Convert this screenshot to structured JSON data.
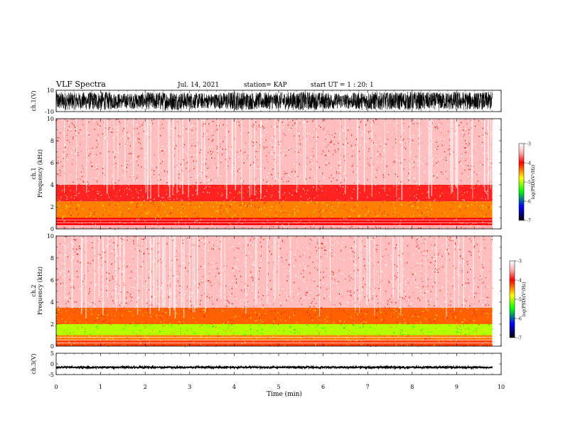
{
  "header": {
    "title": "VLF Spectra",
    "date": "Jul. 14, 2021",
    "station": "station= KAP",
    "start_ut": "start UT = 1 : 20: 1"
  },
  "colorbar": {
    "label": "log(PSD)(V²/Hz)",
    "ticks": [
      "-3",
      "-4",
      "-5",
      "-6",
      "-7"
    ],
    "colors": [
      "#ffffff",
      "#ff0000",
      "#ffff00",
      "#00ff00",
      "#0000ff",
      "#000000"
    ]
  },
  "chart_data": [
    {
      "type": "line",
      "name": "ch1-waveform",
      "ylabel": "ch.1(V)",
      "ylim": [
        -10,
        10
      ],
      "yticks": [
        "10",
        "-10"
      ],
      "x": [
        0,
        0.5,
        1,
        1.5,
        2,
        2.5,
        3,
        3.5,
        4,
        4.5,
        5,
        5.5,
        6,
        6.5,
        7,
        7.5,
        8,
        8.5,
        9,
        9.5,
        9.8
      ],
      "envelope_upper": [
        9,
        8,
        9,
        7,
        8,
        9,
        8,
        7,
        9,
        8,
        8,
        9,
        8,
        7,
        9,
        8,
        9,
        8,
        9,
        8,
        9
      ],
      "envelope_lower": [
        -9,
        -8,
        -9,
        -7,
        -8,
        -9,
        -8,
        -7,
        -9,
        -8,
        -8,
        -9,
        -8,
        -7,
        -9,
        -8,
        -9,
        -8,
        -9,
        -8,
        -9
      ]
    },
    {
      "type": "heatmap",
      "name": "ch1-spectrogram",
      "ylabel": "ch.1 Frequency (kHz)",
      "ylim": [
        0,
        10
      ],
      "yticks": [
        "0",
        "2",
        "4",
        "6",
        "8",
        "10"
      ],
      "xlim": [
        0,
        9.8
      ],
      "z_range": [
        -7,
        -3
      ],
      "band_levels_by_freq_kHz": [
        {
          "f": [
            0,
            0.3
          ],
          "log_psd": -3.5
        },
        {
          "f": [
            0.3,
            1.0
          ],
          "log_psd": -4.0
        },
        {
          "f": [
            1.0,
            2.5
          ],
          "log_psd": -4.4
        },
        {
          "f": [
            2.5,
            4.0
          ],
          "log_psd": -3.9
        },
        {
          "f": [
            4.0,
            10.0
          ],
          "log_psd": -3.4
        }
      ]
    },
    {
      "type": "heatmap",
      "name": "ch2-spectrogram",
      "ylabel": "ch.2 Frequency (kHz)",
      "ylim": [
        0,
        10
      ],
      "yticks": [
        "0",
        "2",
        "4",
        "6",
        "8",
        "10"
      ],
      "xlim": [
        0,
        9.8
      ],
      "z_range": [
        -7,
        -3
      ],
      "band_levels_by_freq_kHz": [
        {
          "f": [
            0,
            0.6
          ],
          "log_psd": -4.2
        },
        {
          "f": [
            0.6,
            1.0
          ],
          "log_psd": -4.4
        },
        {
          "f": [
            1.0,
            2.0
          ],
          "log_psd": -5.0
        },
        {
          "f": [
            2.0,
            3.5
          ],
          "log_psd": -4.3
        },
        {
          "f": [
            3.5,
            10.0
          ],
          "log_psd": -3.4
        }
      ]
    },
    {
      "type": "line",
      "name": "ch3-waveform",
      "ylabel": "ch.3(V)",
      "ylim": [
        -5,
        5
      ],
      "yticks": [
        "5",
        "0",
        "-5"
      ],
      "x": [
        0,
        9.8
      ],
      "envelope_upper": [
        -1.2,
        -1.2
      ],
      "envelope_lower": [
        -2.0,
        -2.0
      ]
    }
  ],
  "xaxis": {
    "label": "Time (min)",
    "xlim": [
      0,
      10
    ],
    "ticks": [
      "0",
      "1",
      "2",
      "3",
      "4",
      "5",
      "6",
      "7",
      "8",
      "9",
      "10"
    ]
  }
}
